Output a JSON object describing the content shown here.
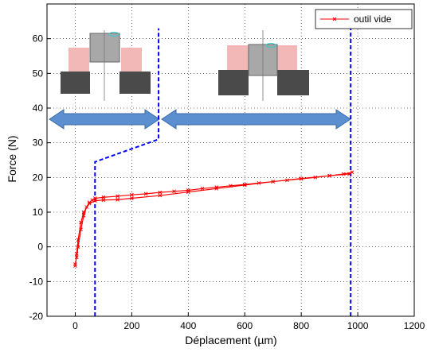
{
  "chart_data": {
    "type": "line",
    "x_label": "Déplacement (µm)",
    "y_label": "Force (N)",
    "xlim": [
      -100,
      1200
    ],
    "xticks": [
      0,
      200,
      400,
      600,
      800,
      1000,
      1200
    ],
    "ylim": [
      -20,
      70
    ],
    "yticks": [
      -20,
      -10,
      0,
      10,
      20,
      30,
      40,
      50,
      60
    ],
    "grid": true,
    "legend": "upper right",
    "series": [
      {
        "name": "outil vide",
        "color": "#ff0000",
        "x": [
          0,
          5,
          10,
          20,
          30,
          40,
          50,
          60,
          70,
          100,
          150,
          200,
          250,
          300,
          350,
          400,
          450,
          500,
          550,
          600,
          650,
          700,
          750,
          800,
          850,
          900,
          950,
          980,
          970,
          900,
          800,
          700,
          600,
          500,
          400,
          300,
          200,
          150,
          100,
          70,
          50,
          30,
          20,
          10,
          5,
          0
        ],
        "values": [
          -5,
          -3,
          0,
          5,
          9,
          11.5,
          12.8,
          13.5,
          14,
          14.3,
          14.6,
          15,
          15.3,
          15.7,
          16,
          16.3,
          16.8,
          17.2,
          17.6,
          18,
          18.4,
          18.8,
          19.2,
          19.6,
          20,
          20.5,
          21,
          21.5,
          21,
          20.5,
          19.7,
          18.8,
          17.8,
          16.8,
          15.8,
          14.8,
          14,
          13.6,
          13.5,
          13.3,
          12.5,
          10,
          7,
          2,
          -2,
          -5.5
        ]
      }
    ],
    "guides": [
      {
        "color": "#0000ff",
        "x": [
          70,
          70,
          295,
          295
        ],
        "y": [
          -20,
          24.5,
          31,
          63
        ]
      },
      {
        "color": "#0000ff",
        "x": [
          975,
          975
        ],
        "y": [
          -20,
          63
        ]
      }
    ]
  }
}
